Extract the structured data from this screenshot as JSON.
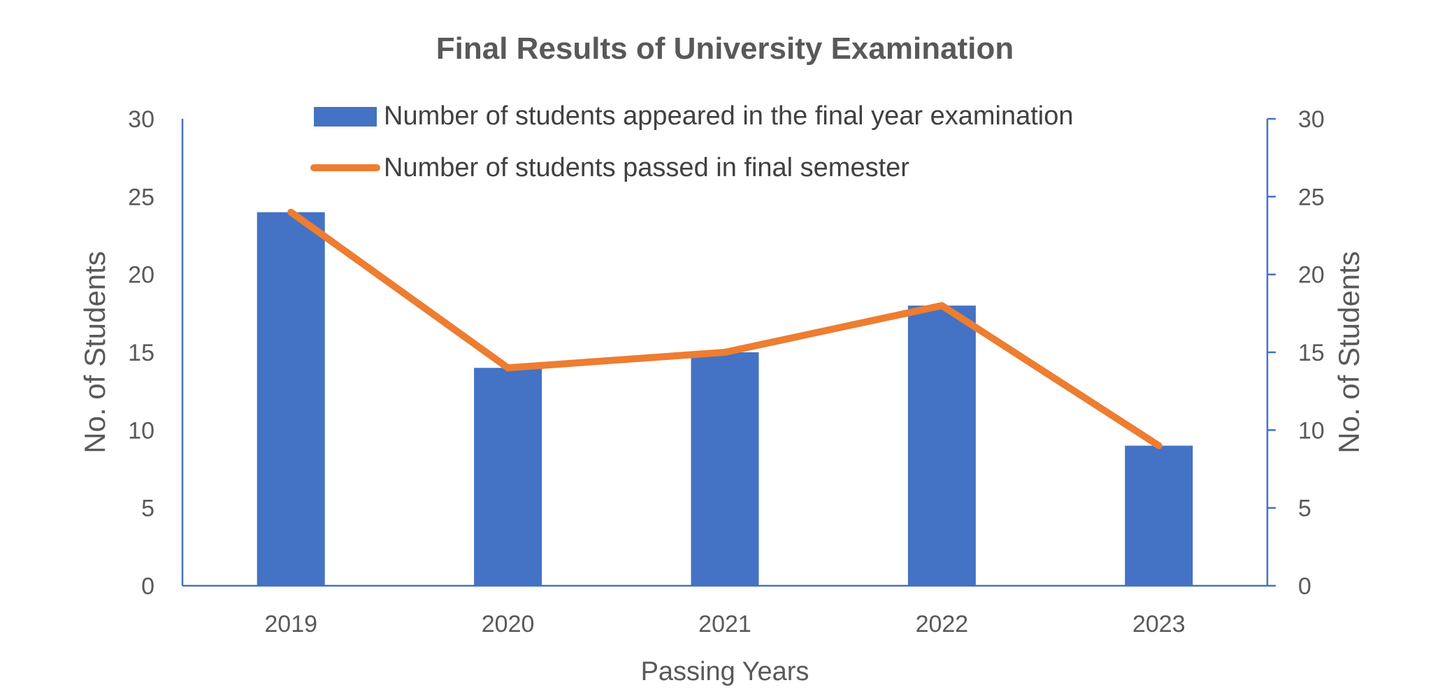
{
  "chart_data": {
    "type": "bar",
    "title": "Final Results of University Examination",
    "xlabel": "Passing Years",
    "ylabel": "No. of Students",
    "y2label": "No. of Students",
    "categories": [
      "2019",
      "2020",
      "2021",
      "2022",
      "2023"
    ],
    "ylim": [
      0,
      30
    ],
    "y2lim": [
      0,
      30
    ],
    "yticks": [
      "0",
      "5",
      "10",
      "15",
      "20",
      "25",
      "30"
    ],
    "y2ticks": [
      "0",
      "5",
      "10",
      "15",
      "20",
      "25",
      "30"
    ],
    "grid": false,
    "legend_position": "top",
    "series": [
      {
        "name": "Number of students appeared in the final year examination",
        "type": "bar",
        "color": "#4472C4",
        "axis": "left",
        "values": [
          24,
          14,
          15,
          18,
          9
        ]
      },
      {
        "name": "Number of students passed in final semester",
        "type": "line",
        "color": "#ED7D31",
        "axis": "right",
        "values": [
          24,
          14,
          15,
          18,
          9
        ]
      }
    ]
  }
}
